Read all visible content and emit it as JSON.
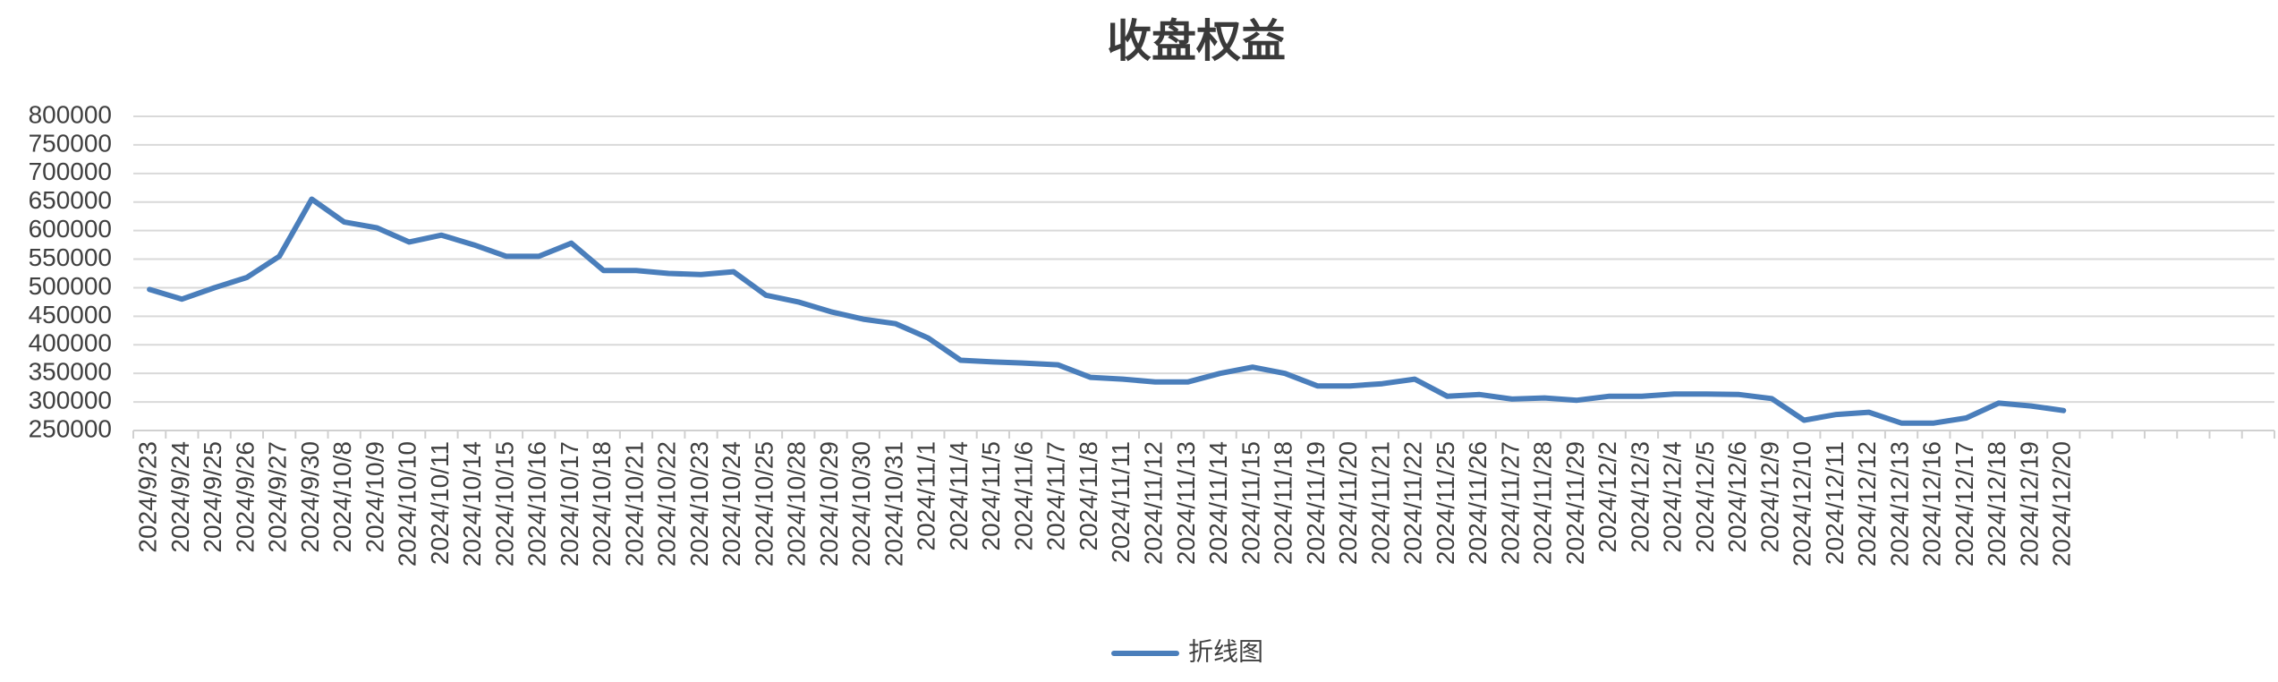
{
  "chart_data": {
    "type": "line",
    "title": "收盘权益",
    "categories": [
      "2024/9/23",
      "2024/9/24",
      "2024/9/25",
      "2024/9/26",
      "2024/9/27",
      "2024/9/30",
      "2024/10/8",
      "2024/10/9",
      "2024/10/10",
      "2024/10/11",
      "2024/10/14",
      "2024/10/15",
      "2024/10/16",
      "2024/10/17",
      "2024/10/18",
      "2024/10/21",
      "2024/10/22",
      "2024/10/23",
      "2024/10/24",
      "2024/10/25",
      "2024/10/28",
      "2024/10/29",
      "2024/10/30",
      "2024/10/31",
      "2024/11/1",
      "2024/11/4",
      "2024/11/5",
      "2024/11/6",
      "2024/11/7",
      "2024/11/8",
      "2024/11/11",
      "2024/11/12",
      "2024/11/13",
      "2024/11/14",
      "2024/11/15",
      "2024/11/18",
      "2024/11/19",
      "2024/11/20",
      "2024/11/21",
      "2024/11/22",
      "2024/11/25",
      "2024/11/26",
      "2024/11/27",
      "2024/11/28",
      "2024/11/29",
      "2024/12/2",
      "2024/12/3",
      "2024/12/4",
      "2024/12/5",
      "2024/12/6",
      "2024/12/9",
      "2024/12/10",
      "2024/12/11",
      "2024/12/12",
      "2024/12/13",
      "2024/12/16",
      "2024/12/17",
      "2024/12/18",
      "2024/12/19",
      "2024/12/20",
      null,
      null,
      null,
      null,
      null,
      null
    ],
    "series": [
      {
        "name": "折线图",
        "color": "#4a7ebb",
        "values": [
          497000,
          480000,
          500000,
          518000,
          555000,
          655000,
          615000,
          605000,
          580000,
          592000,
          575000,
          555000,
          555000,
          578000,
          530000,
          530000,
          525000,
          523000,
          528000,
          487000,
          475000,
          458000,
          445000,
          437000,
          412000,
          373000,
          370000,
          368000,
          365000,
          343000,
          340000,
          335000,
          335000,
          350000,
          361000,
          350000,
          328000,
          328000,
          332000,
          340000,
          310000,
          313000,
          305000,
          307000,
          303000,
          310000,
          310000,
          314000,
          314000,
          313000,
          306000,
          268000,
          278000,
          282000,
          263000,
          263000,
          272000,
          298000,
          293000,
          285000,
          null,
          null,
          null,
          null,
          null,
          null
        ]
      }
    ],
    "ylim": [
      250000,
      800000
    ],
    "yticks": [
      250000,
      300000,
      350000,
      400000,
      450000,
      500000,
      550000,
      600000,
      650000,
      700000,
      750000,
      800000
    ],
    "grid": true,
    "legend": "bottom"
  }
}
